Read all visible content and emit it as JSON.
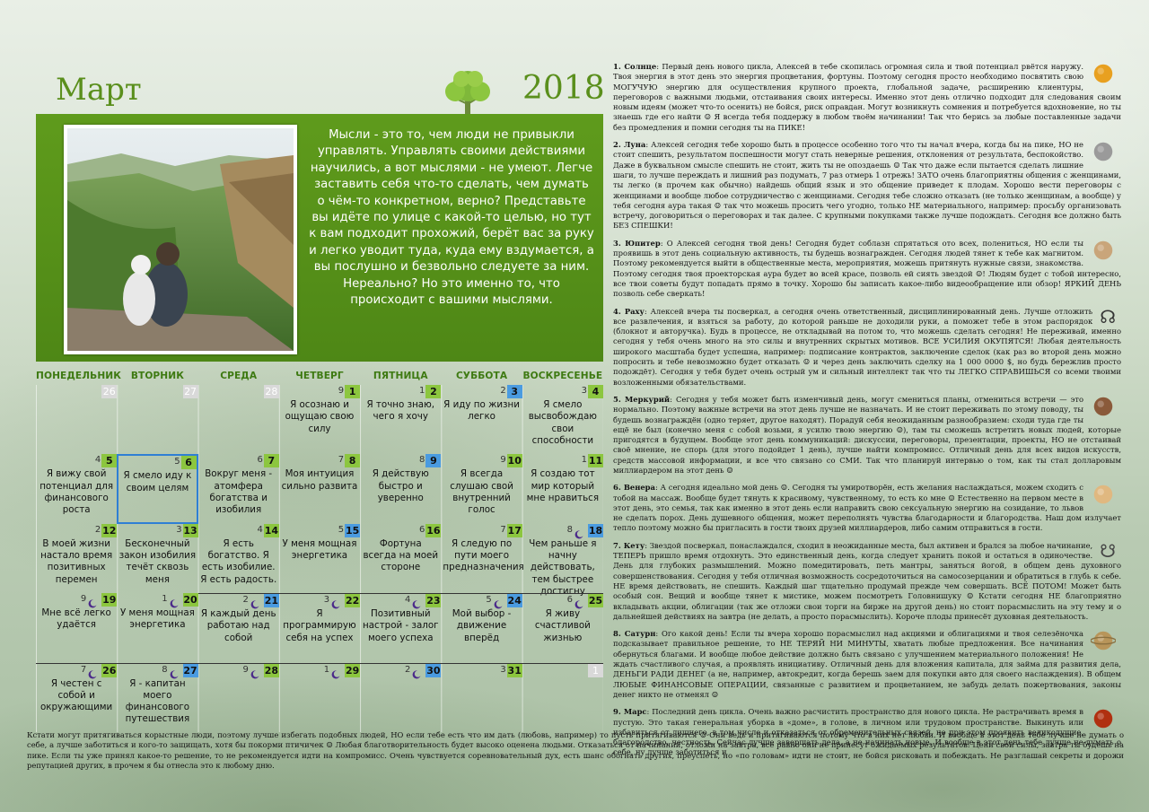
{
  "header": {
    "month": "Март",
    "year": "2018"
  },
  "quote": "Мысли - это то, чем люди не привыкли управлять. Управлять своими действиями научились, а вот мыслями - не умеют. Легче заставить себя что-то сделать, чем думать о чём-то конкретном, верно? Представьте вы идёте по улице с какой-то целью, но тут к вам подходит прохожий, берёт вас за руку и легко уводит туда, куда ему вздумается, а вы послушно и безвольно следуете за ним. Нереально? Но это именно то, что происходит с вашими мыслями.",
  "weekdays": [
    "ПОНЕДЕЛЬНИК",
    "ВТОРНИК",
    "СРЕДА",
    "ЧЕТВЕРГ",
    "ПЯТНИЦА",
    "СУББОТА",
    "ВОСКРЕСЕНЬЕ"
  ],
  "weeks": [
    [
      {
        "d": "26",
        "grey": true
      },
      {
        "d": "27",
        "grey": true
      },
      {
        "d": "28",
        "grey": true
      },
      {
        "d": "1",
        "l": "9",
        "t": "Я осознаю и ощущаю свою силу"
      },
      {
        "d": "2",
        "l": "1",
        "t": "Я точно знаю, чего я хочу"
      },
      {
        "d": "3",
        "l": "2",
        "blue": true,
        "t": "Я иду по жизни легко"
      },
      {
        "d": "4",
        "l": "3",
        "t": "Я смело высвобождаю свои способности"
      }
    ],
    [
      {
        "d": "5",
        "l": "4",
        "t": "Я вижу свой потенциал для финансового роста"
      },
      {
        "d": "6",
        "l": "5",
        "sel": true,
        "t": "Я смело иду к своим целям"
      },
      {
        "d": "7",
        "l": "6",
        "t": "Вокруг меня - атомфера богатства и изобилия"
      },
      {
        "d": "8",
        "l": "7",
        "t": "Моя интуиция сильно развита"
      },
      {
        "d": "9",
        "l": "8",
        "blue": true,
        "t": "Я действую быстро и уверенно"
      },
      {
        "d": "10",
        "l": "9",
        "t": "Я всегда слушаю свой внутренний голос"
      },
      {
        "d": "11",
        "l": "1",
        "t": "Я создаю тот мир который мне нравиться"
      }
    ],
    [
      {
        "d": "12",
        "l": "2",
        "t": "В моей жизни настало время позитивных перемен"
      },
      {
        "d": "13",
        "l": "3",
        "t": "Бесконечный закон изобилия течёт сквозь меня"
      },
      {
        "d": "14",
        "l": "4",
        "t": "Я есть богатство. Я есть изобилие. Я есть радость."
      },
      {
        "d": "15",
        "l": "5",
        "blue": true,
        "t": "У меня мощная энергетика"
      },
      {
        "d": "16",
        "l": "6",
        "t": "Фортуна всегда на моей стороне"
      },
      {
        "d": "17",
        "l": "7",
        "t": "Я следую по пути моего предназначения"
      },
      {
        "d": "18",
        "l": "8",
        "moon": true,
        "blue": true,
        "t": "Чем раньше я начну действовать, тем быстрее достигну"
      }
    ],
    [
      {
        "d": "19",
        "l": "9",
        "moon": true,
        "t": "Мне всё легко удаётся"
      },
      {
        "d": "20",
        "l": "1",
        "moon": true,
        "t": "У меня мощная энергетика"
      },
      {
        "d": "21",
        "l": "2",
        "moon": true,
        "blue": true,
        "bt": true,
        "t": "Я каждый день работаю над собой"
      },
      {
        "d": "22",
        "l": "3",
        "moon": true,
        "bt": true,
        "t": "Я программирую себя на успех"
      },
      {
        "d": "23",
        "l": "4",
        "moon": true,
        "bt": true,
        "t": "Позитивный настрой - залог моего успеха"
      },
      {
        "d": "24",
        "l": "5",
        "moon": true,
        "blue": true,
        "bt": true,
        "t": "Мой выбор - движение вперёд"
      },
      {
        "d": "25",
        "l": "6",
        "moon": true,
        "bt": true,
        "t": "Я живу счастливой жизнью"
      }
    ],
    [
      {
        "d": "26",
        "l": "7",
        "moon": true,
        "bt": true,
        "t": "Я честен с собой и окружающими"
      },
      {
        "d": "27",
        "l": "8",
        "moon": true,
        "blue": true,
        "bt": true,
        "t": "Я - капитан моего финансового путешествия"
      },
      {
        "d": "28",
        "l": "9",
        "moon": true,
        "bt": true,
        "t": ""
      },
      {
        "d": "29",
        "l": "1",
        "moon": true,
        "bt": true,
        "t": ""
      },
      {
        "d": "30",
        "l": "2",
        "moon": true,
        "blue": true,
        "bt": true,
        "t": ""
      },
      {
        "d": "31",
        "l": "3",
        "bt": true,
        "t": ""
      },
      {
        "d": "1",
        "grey": true,
        "bt": true
      }
    ]
  ],
  "planets": [
    {
      "num": "1.",
      "name": "Солнце",
      "icon": "sun-icon",
      "color": "#e8a020",
      "text": ": Первый день нового цикла, Алексей в тебе скопилась огромная сила и твой потенциал рвётся наружу. Твоя энергия в этот день это энергия процветания, фортуны. Поэтому сегодня просто необходимо посвятить свою МОГУЧУЮ энергию для осуществления крупного проекта, глобальной задаче, расширению клиентуры, переговоров с важными людьми, отстаивания своих интересы. Именно этот день отлично подходит для следования своим новым идеям (может что-то осенить) не бойся, риск оправдан. Могут возникнуть сомнения и потребуется вдохновение, но ты знаешь где его найти ☺ Я всегда тебя поддержу в любом твоём начинании! Так что берись за любые поставленные задачи без промедления и помни сегодня ты на ПИКЕ!"
    },
    {
      "num": "2.",
      "name": "Луна",
      "icon": "moon-planet-icon",
      "color": "#9a9a9a",
      "text": ": Алексей сегодня тебе хорошо быть в процессе особенно того что ты начал вчера, когда бы на пике, НО не стоит спешить, результатом поспешности могут стать неверные решения, отклонения от результата, беспокойство. Даже в буквальном смысле спешить не стоит, жить ты не опоздаешь ☺ Так что даже если пытается сделать лишние шаги, то лучше переждать и лишний раз подумать, 7 раз отмерь 1 отрежь! ЗАТО очень благоприятны общения с женщинами, ты легко (в прочем как обычно) найдешь общий язык и это общение приведет к плодам. Хорошо вести переговоры с женщинами и вообще любое сотрудничество с женщинами. Сегодня тебе сложно отказать (не только женщинам, а вообще) у тебя сегодня аура такая ☺ так что можешь просить чего угодно, только НЕ материального, например: просьбу организовать встречу, договориться о переговорах и так далее. С крупными покупками также лучше подождать. Сегодня все должно быть БЕЗ СПЕШКИ!"
    },
    {
      "num": "3.",
      "name": "Юпитер",
      "icon": "jupiter-icon",
      "color": "#c9a57a",
      "text": ": О Алексей сегодня твой день! Сегодня будет соблазн спрятаться ото всех, полениться, НО если ты проявишь в этот день социальную активность, ты будешь вознагражден. Сегодня людей тянет к тебе как магнитом. Поэтому рекомендуется выйти в общественные места, мероприятия, можешь притянуть нужные связи, знакомства. Поэтому сегодня твоя проекторская аура будет во всей красе, позволь ей сиять звездой ☺! Людям будет с тобой интересно, все твои советы будут попадать прямо в точку. Хорошо бы записать какое-либо видеообращение или обзор! ЯРКИЙ ДЕНЬ позволь себе сверкать!"
    },
    {
      "num": "4.",
      "name": "Раху",
      "icon": "rahu-icon",
      "color": "#333333",
      "text": ": Алексей вчера ты посверкал, а сегодня очень ответственный, дисциплинированный день. Лучше отложить все развлечения, и взяться за работу, до которой раньше не доходили руки, а поможет тебе в этом распорядок (блокнот и авторучка). Будь в процессе, не откладывай на потом то, что можешь сделать сегодня! Не переживай, именно сегодня у тебя очень много на это силы и внутренних скрытых мотивов. ВСЕ УСИЛИЯ ОКУПЯТСЯ! Любая деятельность широкого масштаба будет успешна, например: подписание контрактов, заключение сделок (как раз во второй день можно попросить и тебе невозможно будет отказать ☺ и через день заключить сделку на 1 000 0000 $, но будь бережлив просто подождёт). Сегодня у тебя будет очень острый ум и сильный интеллект так что ты ЛЕГКО СПРАВИШЬСЯ со всеми твоими возложенными обязательствами."
    },
    {
      "num": "5.",
      "name": "Меркурий",
      "icon": "mercury-icon",
      "color": "#8a5a3a",
      "text": ": Сегодня у тебя может быть изменчивый день, могут смениться планы, отмениться встречи — это нормально. Поэтому важные встречи на этот день лучше не назначать. И не стоит переживать по этому поводу, ты будешь вознаграждён (одно теряет, другое находят). Порадуй себя неожиданным разнообразием: сходи туда где ты ещё не был (конечно меня с собой возьми, я усилю твою энергию ☺), там ты сможешь встретить новых людей, которые пригодятся в будущем. Вообще этот день коммуникаций: дискуссии, переговоры, презентации, проекты, НО не отстаивай своё мнение, не спорь (для этого подойдет 1 день), лучше найти компромисс. Отличный день для всех видов искусств, средств массовой информации, и все что связано со СМИ. Так что планируй интервью о том, как ты стал долларовым миллиардером на этот день ☺"
    },
    {
      "num": "6.",
      "name": "Венера",
      "icon": "venus-icon",
      "color": "#e0b880",
      "text": ": А сегодня идеально мой день ☺. Сегодня ты умиротворён, есть желания наслаждаться, можем сходить с тобой на массаж. Вообще будет тянуть к красивому, чувственному, то есть ко мне ☺ Естественно на первом месте в этот день, это семья, так как именно в этот день если направить свою сексуальную энергию на созидание, то львов не сделать порох. День душевного общения, может переполнять чувства благодарности и благородства. Наш дом излучает тепло поэтому можно бы пригласить в гости твоих друзей миллиардеров, либо самим отправиться в гости."
    },
    {
      "num": "7.",
      "name": "Кету",
      "icon": "ketu-icon",
      "color": "#444444",
      "text": ": Звездой посверкал, понаслаждался, сходил в неожиданные места, был активен и брался за любое начинание, ТЕПЕРЬ пришло время отдохнуть. Это единственный день, когда следует хранить покой и остаться в одиночестве. День для глубоких размышлений. Можно помедитировать, петь мантры, заняться йогой, в общем день духовного совершенствования. Сегодня у тебя отличная возможность сосредоточиться на самосозерцании и обратиться в глубь к себе. НЕ время действовать, не спешить. Каждый шаг тщательно продумай прежде чем совершать. ВСЁ ПОТОМ! Может быть особый сон. Вещий и вообще тянет к мистике, можем посмотреть Головнишуку ☺ Кстати сегодня НЕ благоприятно вкладывать акции, облигации (так же отложи свои торги на бирже на другой день) но стоит порасмыслить на эту тему и о дальнейшей действиях на завтра (не делать, а просто порасмыслить). Короче плоды принесёт духовная деятельность."
    },
    {
      "num": "8.",
      "name": "Сатурн",
      "icon": "saturn-icon",
      "color": "#b8955a",
      "text": ": Ого какой день! Если ты вчера хорошо порасмыслил над акциями и облигациями и твоя селезёночка подсказывает правильное решение, то НЕ ТЕРЯЙ НИ МИНУТЫ, хватать любые предложения. Все начинания обернуться благами. И вообще любое действие должно быть связано с улучшением материального положения! Не ждать счастливого случая, а проявлять инициативу. Отличный день для вложения капитала, для займа для развития дела, ДЕНЬГИ РАДИ ДЕНЕГ (а не, например, автокредит, когда берешь заем для покупки авто для своего наслаждения). В общем ЛЮБЫЕ ФИНАНСОВЫЕ ОПЕРАЦИИ, связанные с развитием и процветанием, не забудь делать пожертвования, законы денег никто не отменял ☺"
    },
    {
      "num": "9.",
      "name": "Марс",
      "icon": "mars-icon",
      "color": "#b03010",
      "text": ": Последний день цикла. Очень важно расчистить пространство для нового цикла. Не растрачивать время в пустую. Это такая генеральная уборка в «доме», в голове, в личном или трудовом пространстве. Выкинуть или избавиться от лишнего, в том числе и отказаться от обременительных связей, но при этом проявить великодушие, благородство, честность. Сейчас лучше завершать дела, а не начинать новые. И вообще в этот день тебе лучше не думать о себе, ну лучше заботиться и"
    }
  ],
  "footer": "Кстати могут притягиваться корыстные люди, поэтому лучше избегать подобных людей, НО если тебе есть что им дать (любовь, например) то пусть притягиваются ☺ Они ведь и притягиваются потому что в них нет любви. И вообще в этот день тебе лучше не думать о себе, а лучше заботиться и кого-то защищать, хотя бы покорми птичичек ☺ Любая благотворительность будет высоко оценена людьми. Отказаться от начинаний, отложи на завтра, все равно они не принесут ожидаемых результатов. Цени свои силы, завтра ты будешь на пике. Если ты уже принял какое-то решение, то не рекомендуется идти на компромисс. Очень чувствуется соревновательный дух, есть шанс обогнать других, преуспеть, но «по головам» идти не стоит, не бойся рисковать и побеждать. Не разглашай секреты и дорожи репутацией других, в прочем я бы отнесла это к любому дню."
}
